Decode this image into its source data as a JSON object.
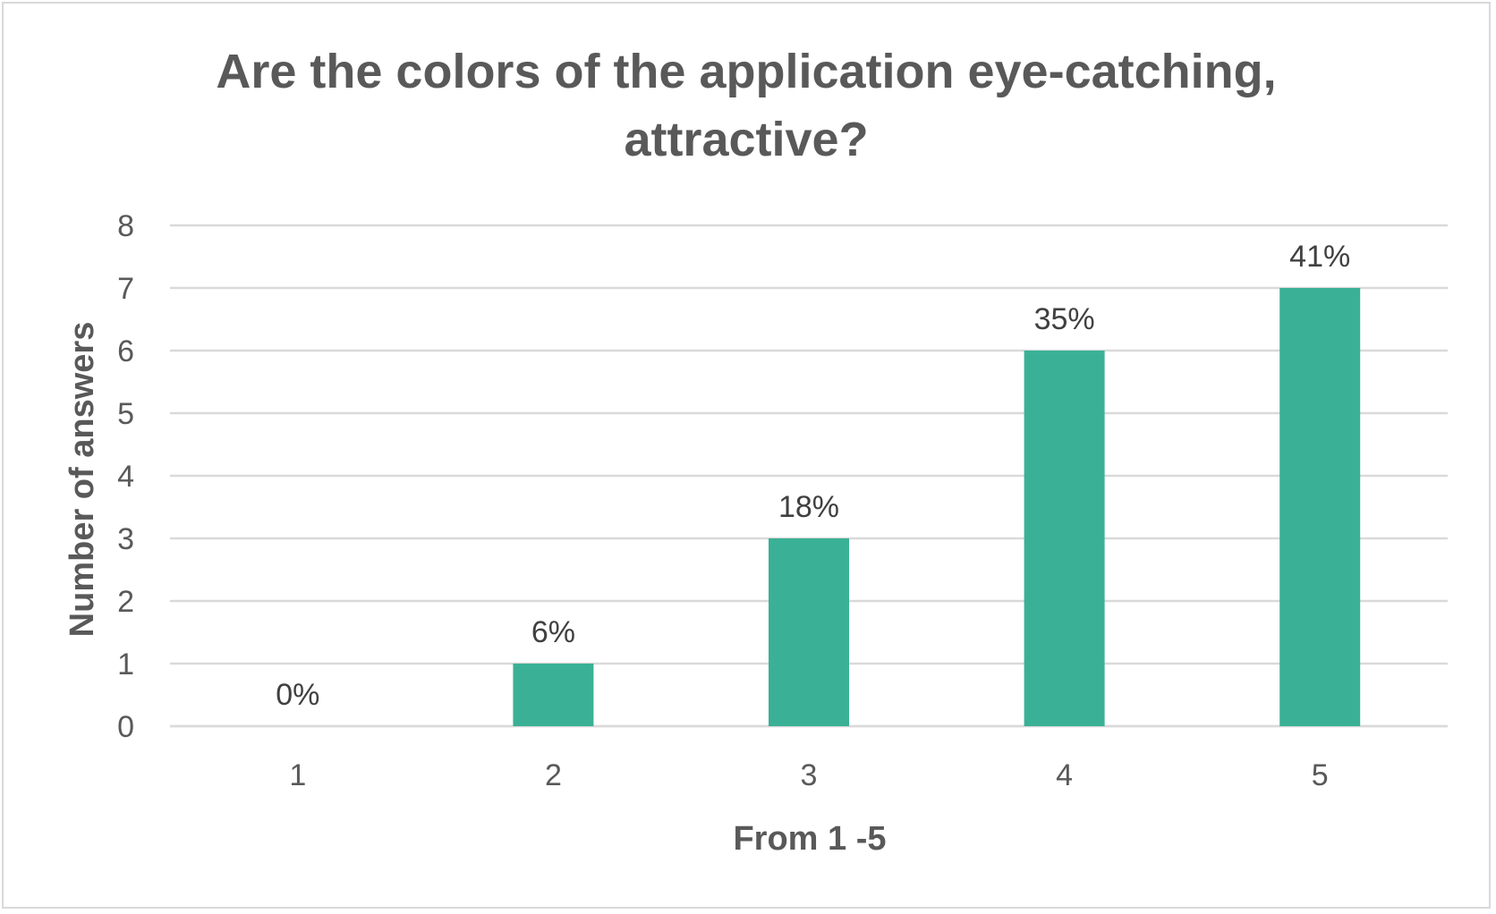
{
  "chart_data": {
    "type": "bar",
    "title_lines": [
      "Are the colors of the application eye-catching,",
      "attractive?"
    ],
    "xlabel": "From 1 -5",
    "ylabel": "Number of answers",
    "categories": [
      "1",
      "2",
      "3",
      "4",
      "5"
    ],
    "values": [
      0,
      1,
      3,
      6,
      7
    ],
    "data_labels": [
      "0%",
      "6%",
      "18%",
      "35%",
      "41%"
    ],
    "yticks": [
      "0",
      "1",
      "2",
      "3",
      "4",
      "5",
      "6",
      "7",
      "8"
    ],
    "ylim": [
      0,
      8
    ],
    "grid": true,
    "legend": "none",
    "bar_color": "#3ab196",
    "grid_color": "#d9d9d9",
    "text_color": "#595959"
  }
}
